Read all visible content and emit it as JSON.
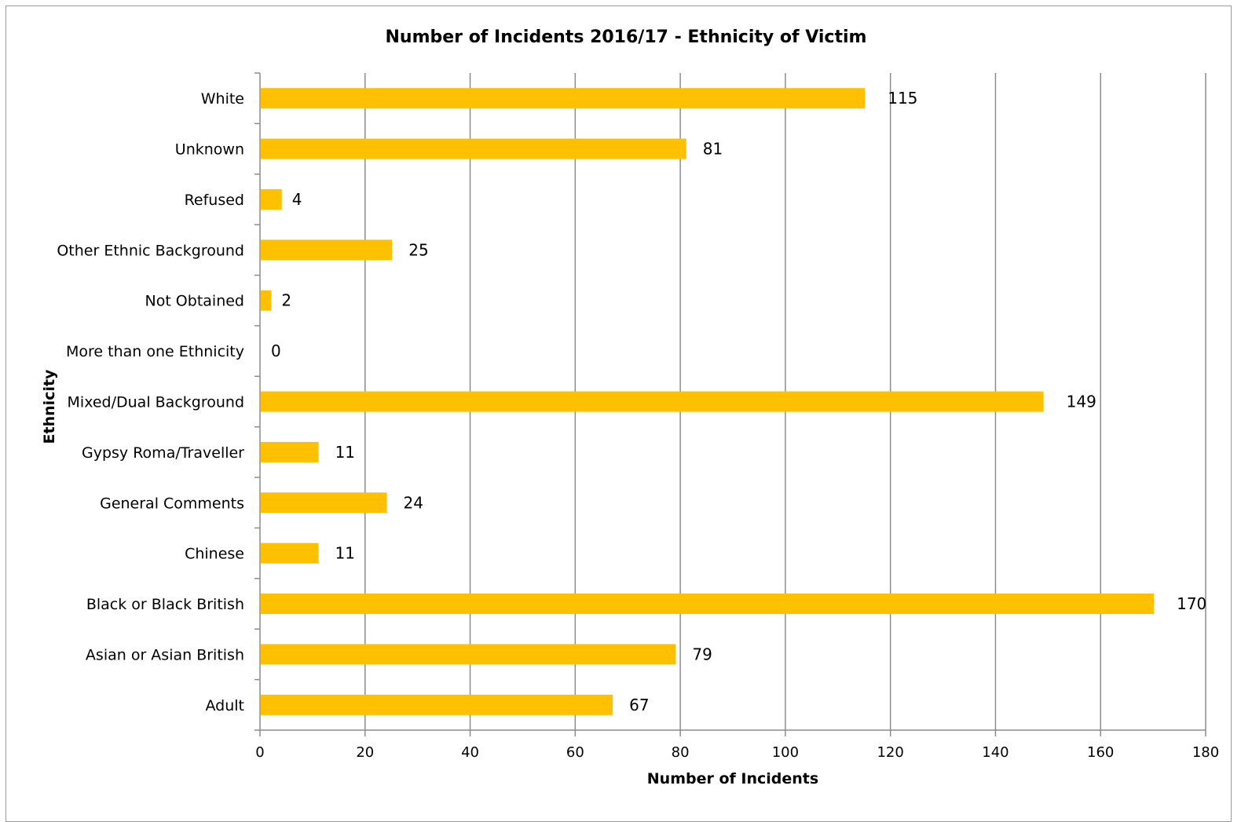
{
  "chart_data": {
    "type": "bar",
    "orientation": "horizontal",
    "title": "Number of Incidents 2016/17 - Ethnicity of Victim",
    "xlabel": "Number of Incidents",
    "ylabel": "Ethnicity",
    "xlim": [
      0,
      180
    ],
    "xticks": [
      "0",
      "20",
      "40",
      "60",
      "80",
      "100",
      "120",
      "140",
      "160",
      "180"
    ],
    "grid": "vertical major gridlines",
    "legend": "none",
    "bar_color": "#FFC000",
    "categories": [
      "White",
      "Unknown",
      "Refused",
      "Other Ethnic Background",
      "Not Obtained",
      "More than one Ethnicity",
      "Mixed/Dual Background",
      "Gypsy Roma/Traveller",
      "General Comments",
      "Chinese",
      "Black or Black British",
      "Asian or Asian British",
      "Adult"
    ],
    "values": [
      115,
      81,
      4,
      25,
      2,
      0,
      149,
      11,
      24,
      11,
      170,
      79,
      67
    ],
    "data_labels": [
      "115",
      "81",
      "4",
      "25",
      "2",
      "0",
      "149",
      "11",
      "24",
      "11",
      "170",
      "79",
      "67"
    ]
  },
  "colors": {
    "bar": "#FFC000",
    "gridline": "#8c8c8c",
    "axis": "#8c8c8c",
    "frame": "#9a9a9a"
  }
}
